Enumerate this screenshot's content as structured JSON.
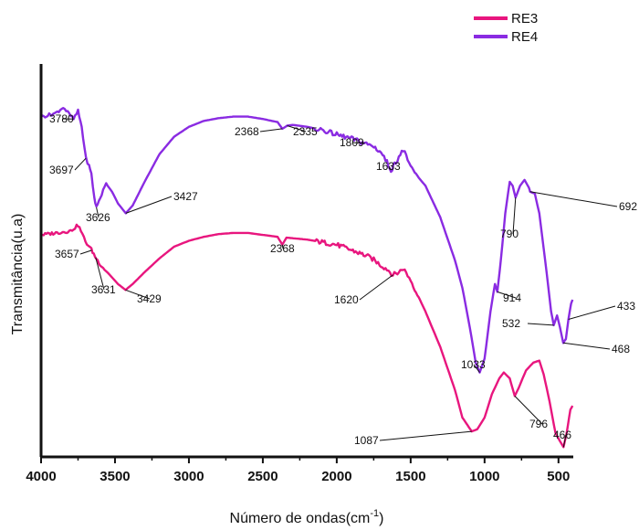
{
  "chart_data": {
    "type": "line",
    "title": "",
    "xlabel": "Número de ondas(cm",
    "xlabel_sup": "-1",
    "xlabel_end": ")",
    "ylabel": "Transmitância(u.a)",
    "xlim": [
      4000,
      400
    ],
    "x_reversed": true,
    "x_ticks": [
      4000,
      3500,
      3000,
      2500,
      2000,
      1500,
      1000,
      500
    ],
    "y_ticks_shown": false,
    "grid": false,
    "legend_position": "top-right",
    "series": [
      {
        "name": "RE3",
        "color": "#e8167e",
        "points": [
          [
            4000,
            0.565
          ],
          [
            3900,
            0.57
          ],
          [
            3800,
            0.575
          ],
          [
            3750,
            0.59
          ],
          [
            3730,
            0.575
          ],
          [
            3700,
            0.548
          ],
          [
            3660,
            0.528
          ],
          [
            3635,
            0.51
          ],
          [
            3600,
            0.49
          ],
          [
            3540,
            0.465
          ],
          [
            3480,
            0.44
          ],
          [
            3429,
            0.425
          ],
          [
            3380,
            0.44
          ],
          [
            3300,
            0.47
          ],
          [
            3200,
            0.505
          ],
          [
            3100,
            0.535
          ],
          [
            3000,
            0.55
          ],
          [
            2900,
            0.56
          ],
          [
            2800,
            0.567
          ],
          [
            2700,
            0.57
          ],
          [
            2600,
            0.57
          ],
          [
            2500,
            0.565
          ],
          [
            2400,
            0.56
          ],
          [
            2368,
            0.54
          ],
          [
            2340,
            0.558
          ],
          [
            2200,
            0.553
          ],
          [
            2000,
            0.54
          ],
          [
            1900,
            0.526
          ],
          [
            1800,
            0.512
          ],
          [
            1750,
            0.502
          ],
          [
            1700,
            0.487
          ],
          [
            1660,
            0.478
          ],
          [
            1620,
            0.463
          ],
          [
            1580,
            0.47
          ],
          [
            1550,
            0.48
          ],
          [
            1500,
            0.45
          ],
          [
            1400,
            0.37
          ],
          [
            1300,
            0.28
          ],
          [
            1200,
            0.17
          ],
          [
            1150,
            0.1
          ],
          [
            1087,
            0.065
          ],
          [
            1050,
            0.07
          ],
          [
            1000,
            0.1
          ],
          [
            950,
            0.16
          ],
          [
            900,
            0.2
          ],
          [
            870,
            0.215
          ],
          [
            830,
            0.2
          ],
          [
            796,
            0.155
          ],
          [
            770,
            0.175
          ],
          [
            720,
            0.22
          ],
          [
            670,
            0.24
          ],
          [
            630,
            0.245
          ],
          [
            600,
            0.21
          ],
          [
            560,
            0.14
          ],
          [
            520,
            0.06
          ],
          [
            490,
            0.04
          ],
          [
            466,
            0.025
          ],
          [
            445,
            0.06
          ],
          [
            420,
            0.12
          ],
          [
            405,
            0.13
          ]
        ]
      },
      {
        "name": "RE4",
        "color": "#8a2be2",
        "points": [
          [
            4000,
            0.865
          ],
          [
            3900,
            0.875
          ],
          [
            3850,
            0.89
          ],
          [
            3800,
            0.868
          ],
          [
            3780,
            0.86
          ],
          [
            3750,
            0.88
          ],
          [
            3725,
            0.84
          ],
          [
            3697,
            0.76
          ],
          [
            3675,
            0.74
          ],
          [
            3660,
            0.72
          ],
          [
            3640,
            0.66
          ],
          [
            3626,
            0.635
          ],
          [
            3600,
            0.66
          ],
          [
            3560,
            0.695
          ],
          [
            3520,
            0.675
          ],
          [
            3480,
            0.645
          ],
          [
            3427,
            0.62
          ],
          [
            3380,
            0.64
          ],
          [
            3300,
            0.7
          ],
          [
            3200,
            0.77
          ],
          [
            3100,
            0.815
          ],
          [
            3000,
            0.84
          ],
          [
            2900,
            0.855
          ],
          [
            2800,
            0.862
          ],
          [
            2700,
            0.866
          ],
          [
            2600,
            0.866
          ],
          [
            2500,
            0.86
          ],
          [
            2400,
            0.852
          ],
          [
            2368,
            0.835
          ],
          [
            2335,
            0.843
          ],
          [
            2300,
            0.845
          ],
          [
            2200,
            0.84
          ],
          [
            2100,
            0.832
          ],
          [
            2000,
            0.82
          ],
          [
            1900,
            0.81
          ],
          [
            1809,
            0.798
          ],
          [
            1750,
            0.79
          ],
          [
            1700,
            0.775
          ],
          [
            1660,
            0.75
          ],
          [
            1633,
            0.73
          ],
          [
            1600,
            0.75
          ],
          [
            1560,
            0.78
          ],
          [
            1530,
            0.77
          ],
          [
            1500,
            0.735
          ],
          [
            1400,
            0.69
          ],
          [
            1300,
            0.61
          ],
          [
            1200,
            0.5
          ],
          [
            1150,
            0.43
          ],
          [
            1100,
            0.33
          ],
          [
            1060,
            0.24
          ],
          [
            1033,
            0.215
          ],
          [
            1000,
            0.25
          ],
          [
            960,
            0.37
          ],
          [
            930,
            0.44
          ],
          [
            914,
            0.42
          ],
          [
            890,
            0.5
          ],
          [
            860,
            0.62
          ],
          [
            830,
            0.7
          ],
          [
            810,
            0.69
          ],
          [
            790,
            0.66
          ],
          [
            760,
            0.69
          ],
          [
            730,
            0.705
          ],
          [
            700,
            0.685
          ],
          [
            692,
            0.675
          ],
          [
            660,
            0.67
          ],
          [
            630,
            0.62
          ],
          [
            590,
            0.5
          ],
          [
            550,
            0.37
          ],
          [
            532,
            0.335
          ],
          [
            510,
            0.36
          ],
          [
            490,
            0.33
          ],
          [
            468,
            0.29
          ],
          [
            450,
            0.3
          ],
          [
            433,
            0.35
          ],
          [
            415,
            0.39
          ],
          [
            405,
            0.4
          ]
        ]
      }
    ],
    "annotations": [
      {
        "text": "3780",
        "series": "RE4",
        "x": 3780
      },
      {
        "text": "3697",
        "series": "RE4",
        "x": 3697
      },
      {
        "text": "3626",
        "series": "RE4",
        "x": 3626
      },
      {
        "text": "3427",
        "series": "RE4",
        "x": 3427
      },
      {
        "text": "2368",
        "series": "RE4",
        "x": 2368
      },
      {
        "text": "2335",
        "series": "RE4",
        "x": 2335
      },
      {
        "text": "1809",
        "series": "RE4",
        "x": 1809
      },
      {
        "text": "1633",
        "series": "RE4",
        "x": 1633
      },
      {
        "text": "790",
        "series": "RE4",
        "x": 790
      },
      {
        "text": "692",
        "series": "RE4",
        "x": 692
      },
      {
        "text": "914",
        "series": "RE4",
        "x": 914
      },
      {
        "text": "1033",
        "series": "RE4",
        "x": 1033
      },
      {
        "text": "532",
        "series": "RE4",
        "x": 532
      },
      {
        "text": "433",
        "series": "RE4",
        "x": 433
      },
      {
        "text": "468",
        "series": "RE4",
        "x": 468
      },
      {
        "text": "3657",
        "series": "RE3",
        "x": 3657
      },
      {
        "text": "3631",
        "series": "RE3",
        "x": 3631
      },
      {
        "text": "3429",
        "series": "RE3",
        "x": 3429
      },
      {
        "text": "2368",
        "series": "RE3",
        "x": 2368
      },
      {
        "text": "1620",
        "series": "RE3",
        "x": 1620
      },
      {
        "text": "1087",
        "series": "RE3",
        "x": 1087
      },
      {
        "text": "796",
        "series": "RE3",
        "x": 796
      },
      {
        "text": "466",
        "series": "RE3",
        "x": 466
      }
    ]
  }
}
